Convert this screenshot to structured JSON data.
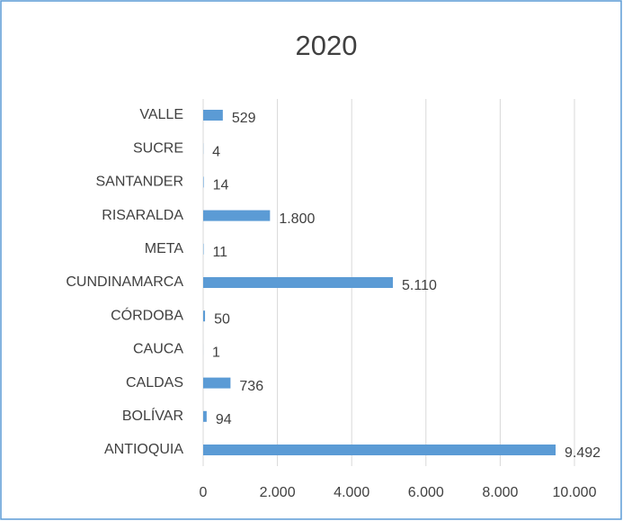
{
  "chart_data": {
    "type": "bar",
    "orientation": "horizontal",
    "title": "2020",
    "categories": [
      "VALLE",
      "SUCRE",
      "SANTANDER",
      "RISARALDA",
      "META",
      "CUNDINAMARCA",
      "CÓRDOBA",
      "CAUCA",
      "CALDAS",
      "BOLÍVAR",
      "ANTIOQUIA"
    ],
    "values": [
      529,
      4,
      14,
      1800,
      11,
      5110,
      50,
      1,
      736,
      94,
      9492
    ],
    "value_labels": [
      "529",
      "4",
      "14",
      "1.800",
      "11",
      "5.110",
      "50",
      "1",
      "736",
      "94",
      "9.492"
    ],
    "color": "#5b9bd5",
    "xlim": [
      0,
      10000
    ],
    "xticks": [
      0,
      {
        "value": 2000,
        "label": "2.000"
      },
      {
        "value": 4000,
        "label": "4.000"
      },
      {
        "value": 6000,
        "label": "6.000"
      },
      {
        "value": 8000,
        "label": "8.000"
      },
      {
        "value": 10000,
        "label": "10.000"
      }
    ],
    "grid": true
  }
}
